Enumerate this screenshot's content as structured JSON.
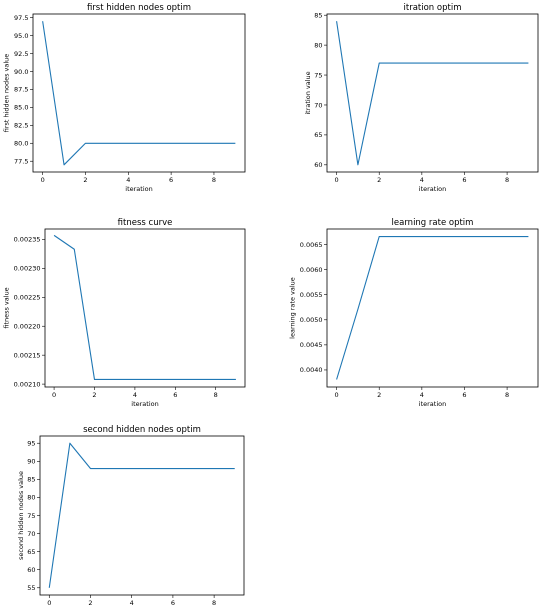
{
  "series_color": "#1f77b4",
  "chart_data": [
    {
      "id": "first-hidden",
      "type": "line",
      "title": "first hidden nodes optim",
      "xlabel": "iteration",
      "ylabel": "first hidden nodes value",
      "x": [
        0,
        1,
        2,
        3,
        4,
        5,
        6,
        7,
        8,
        9
      ],
      "values": [
        97,
        77,
        80,
        80,
        80,
        80,
        80,
        80,
        80,
        80
      ],
      "xlim": [
        -0.45,
        9.45
      ],
      "ylim": [
        76.0,
        98.0
      ],
      "xticks": [
        0,
        2,
        4,
        6,
        8
      ],
      "xtick_labels": [
        "0",
        "2",
        "4",
        "6",
        "8"
      ],
      "yticks": [
        77.5,
        80.0,
        82.5,
        85.0,
        87.5,
        90.0,
        92.5,
        95.0,
        97.5
      ],
      "ytick_labels": [
        "77.5",
        "80.0",
        "82.5",
        "85.0",
        "87.5",
        "90.0",
        "92.5",
        "95.0",
        "97.5"
      ],
      "grid": false,
      "legend": "none"
    },
    {
      "id": "iteration",
      "type": "line",
      "title": "itration optim",
      "xlabel": "iteration",
      "ylabel": "itration value",
      "x": [
        0,
        1,
        2,
        3,
        4,
        5,
        6,
        7,
        8,
        9
      ],
      "values": [
        84,
        60,
        77,
        77,
        77,
        77,
        77,
        77,
        77,
        77
      ],
      "xlim": [
        -0.45,
        9.45
      ],
      "ylim": [
        58.8,
        85.2
      ],
      "xticks": [
        0,
        2,
        4,
        6,
        8
      ],
      "xtick_labels": [
        "0",
        "2",
        "4",
        "6",
        "8"
      ],
      "yticks": [
        60,
        65,
        70,
        75,
        80,
        85
      ],
      "ytick_labels": [
        "60",
        "65",
        "70",
        "75",
        "80",
        "85"
      ],
      "grid": false,
      "legend": "none"
    },
    {
      "id": "fitness",
      "type": "line",
      "title": "fitness curve",
      "xlabel": "iteration",
      "ylabel": "fitness value",
      "x": [
        0,
        1,
        2,
        3,
        4,
        5,
        6,
        7,
        8,
        9
      ],
      "values": [
        0.002357,
        0.002333,
        0.002108,
        0.002108,
        0.002108,
        0.002108,
        0.002108,
        0.002108,
        0.002108,
        0.002108
      ],
      "xlim": [
        -0.45,
        9.45
      ],
      "ylim": [
        0.002095,
        0.002368
      ],
      "xticks": [
        0,
        2,
        4,
        6,
        8
      ],
      "xtick_labels": [
        "0",
        "2",
        "4",
        "6",
        "8"
      ],
      "yticks": [
        0.0021,
        0.00215,
        0.0022,
        0.00225,
        0.0023,
        0.00235
      ],
      "ytick_labels": [
        "0.00210",
        "0.00215",
        "0.00220",
        "0.00225",
        "0.00230",
        "0.00235"
      ],
      "grid": false,
      "legend": "none"
    },
    {
      "id": "learning-rate",
      "type": "line",
      "title": "learning rate optim",
      "xlabel": "iteration",
      "ylabel": "learning rate value",
      "x": [
        0,
        1,
        2,
        3,
        4,
        5,
        6,
        7,
        8,
        9
      ],
      "values": [
        0.00381,
        0.00521,
        0.00666,
        0.00666,
        0.00666,
        0.00666,
        0.00666,
        0.00666,
        0.00666,
        0.00666
      ],
      "xlim": [
        -0.45,
        9.45
      ],
      "ylim": [
        0.00366,
        0.00681
      ],
      "xticks": [
        0,
        2,
        4,
        6,
        8
      ],
      "xtick_labels": [
        "0",
        "2",
        "4",
        "6",
        "8"
      ],
      "yticks": [
        0.004,
        0.0045,
        0.005,
        0.0055,
        0.006,
        0.0065
      ],
      "ytick_labels": [
        "0.0040",
        "0.0045",
        "0.0050",
        "0.0055",
        "0.0060",
        "0.0065"
      ],
      "grid": false,
      "legend": "none"
    },
    {
      "id": "second-hidden",
      "type": "line",
      "title": "second hidden nodes optim",
      "xlabel": "iteration",
      "ylabel": "second hidden nodes value",
      "x": [
        0,
        1,
        2,
        3,
        4,
        5,
        6,
        7,
        8,
        9
      ],
      "values": [
        55,
        95,
        88,
        88,
        88,
        88,
        88,
        88,
        88,
        88
      ],
      "xlim": [
        -0.45,
        9.45
      ],
      "ylim": [
        53.0,
        97.0
      ],
      "xticks": [
        0,
        2,
        4,
        6,
        8
      ],
      "xtick_labels": [
        "0",
        "2",
        "4",
        "6",
        "8"
      ],
      "yticks": [
        55,
        60,
        65,
        70,
        75,
        80,
        85,
        90,
        95
      ],
      "ytick_labels": [
        "55",
        "60",
        "65",
        "70",
        "75",
        "80",
        "85",
        "90",
        "95"
      ],
      "grid": false,
      "legend": "none"
    }
  ]
}
